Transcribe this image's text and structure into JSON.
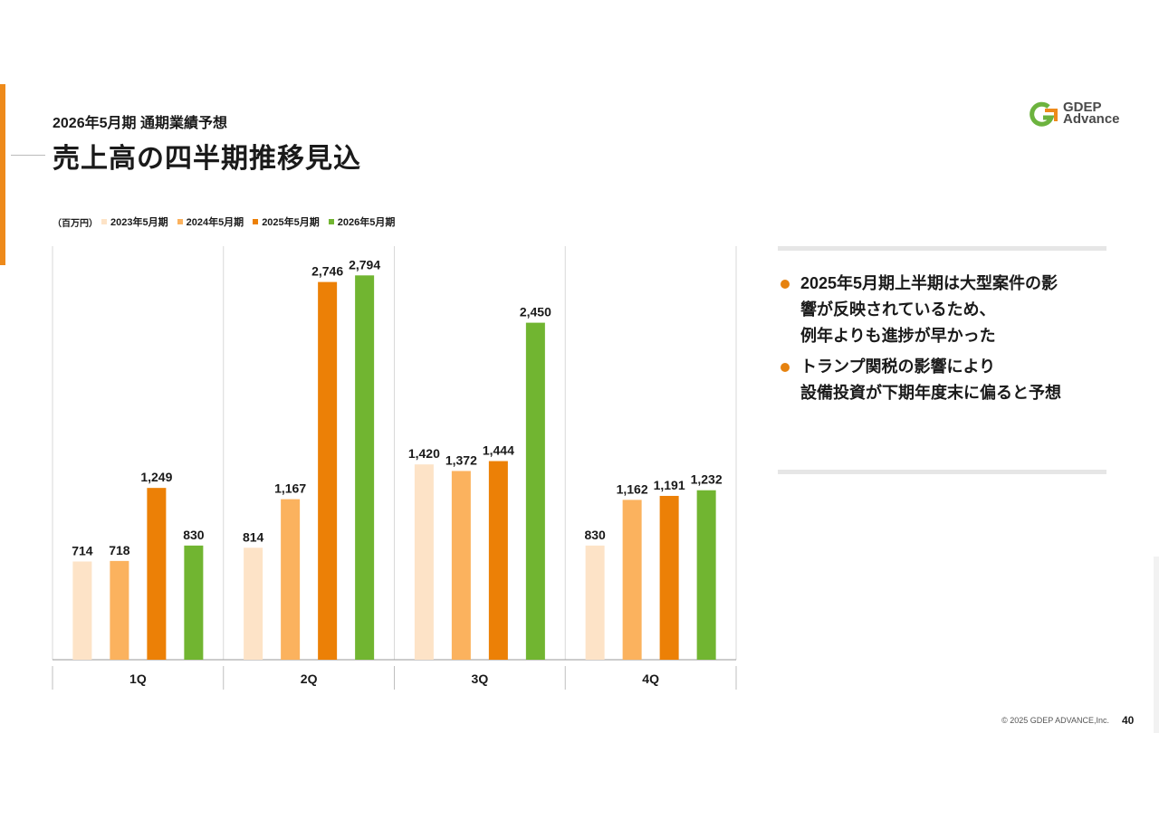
{
  "header": {
    "subtitle": "2026年5月期 通期業績予想",
    "title": "売上高の四半期推移見込"
  },
  "logo": {
    "line1": "GDEP",
    "line2": "Advance"
  },
  "legend": {
    "unit": "（百万円）"
  },
  "colors": {
    "accent": "#ee8a1a",
    "bullet": "#e6820f"
  },
  "chart_data": {
    "type": "bar",
    "categories": [
      "1Q",
      "2Q",
      "3Q",
      "4Q"
    ],
    "series": [
      {
        "name": "2023年5月期",
        "color": "#fde3c7",
        "values": [
          714,
          814,
          1420,
          830
        ]
      },
      {
        "name": "2024年5月期",
        "color": "#fbb25e",
        "values": [
          718,
          1167,
          1372,
          1162
        ]
      },
      {
        "name": "2025年5月期",
        "color": "#ec8006",
        "values": [
          1249,
          2746,
          1444,
          1191
        ]
      },
      {
        "name": "2026年5月期",
        "color": "#71b531",
        "values": [
          830,
          2794,
          2450,
          1232
        ]
      }
    ],
    "data_labels": [
      [
        "714",
        "814",
        "1,420",
        "830"
      ],
      [
        "718",
        "1,167",
        "1,372",
        "1,162"
      ],
      [
        "1,249",
        "2,746",
        "1,444",
        "1,191"
      ],
      [
        "830",
        "2,794",
        "2,450",
        "1,232"
      ]
    ],
    "ylim": [
      0,
      3000
    ],
    "grid": false,
    "legend_position": "top-left"
  },
  "notes": [
    {
      "text": "2025年5月期上半期は大型案件の影\n響が反映されているため、\n例年よりも進捗が早かった"
    },
    {
      "text": "トランプ関税の影響により\n設備投資が下期年度末に偏ると予想"
    }
  ],
  "footer": {
    "copyright": "© 2025 GDEP ADVANCE,Inc.",
    "page": "40"
  }
}
